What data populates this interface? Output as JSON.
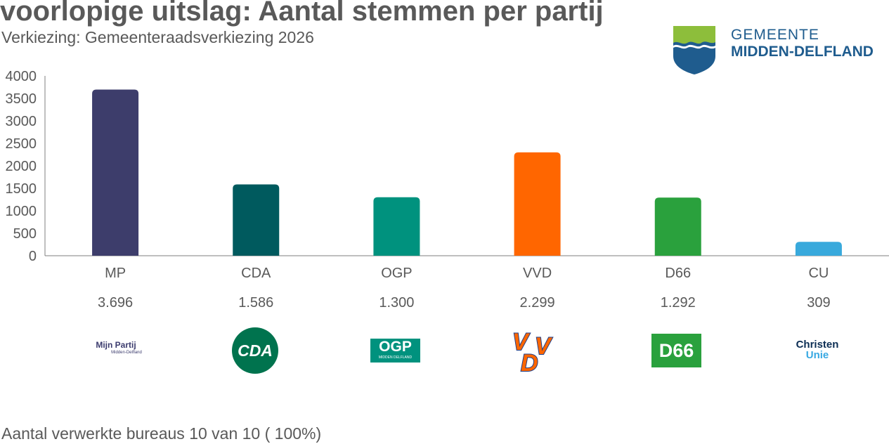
{
  "header": {
    "title": "voorlopige uitslag: Aantal stemmen per partij",
    "subtitle": "Verkiezing: Gemeenteraadsverkiezing 2026"
  },
  "municipality": {
    "line1": "GEMEENTE",
    "line2": "MIDDEN-DELFLAND"
  },
  "footer": {
    "text": "Aantal verwerkte bureaus 10 van 10 ( 100%)"
  },
  "chart_data": {
    "type": "bar",
    "title": "voorlopige uitslag: Aantal stemmen per partij",
    "subtitle": "Verkiezing: Gemeenteraadsverkiezing 2026",
    "xlabel": "",
    "ylabel": "",
    "categories": [
      "MP",
      "CDA",
      "OGP",
      "VVD",
      "D66",
      "CU"
    ],
    "values": [
      3696,
      1586,
      1300,
      2299,
      1292,
      309
    ],
    "value_labels": [
      "3.696",
      "1.586",
      "1.300",
      "2.299",
      "1.292",
      "309"
    ],
    "colors": [
      "#3d3d6b",
      "#005a5e",
      "#00927e",
      "#ff6600",
      "#2aa13d",
      "#38a9dc"
    ],
    "ylim": [
      0,
      4000
    ],
    "yticks": [
      0,
      500,
      1000,
      1500,
      2000,
      2500,
      3000,
      3500,
      4000
    ],
    "grid": false,
    "legend": "none"
  },
  "party_logos": {
    "mp": {
      "line1": "Mijn Partij",
      "line2": "Midden-Delfland"
    },
    "cda": {
      "text": "CDA"
    },
    "ogp": {
      "line1": "OGP",
      "line2": "MIDDEN DELFLAND"
    },
    "vvd": {
      "text": "VVD"
    },
    "d66": {
      "text": "D66"
    },
    "cu": {
      "line1": "Christen",
      "line2": "Unie"
    }
  },
  "colors": {
    "axis": "#7f7f7f",
    "text": "#595959",
    "municipality_blue": "#1f5c8e",
    "municipality_green": "#8dbe3b"
  }
}
